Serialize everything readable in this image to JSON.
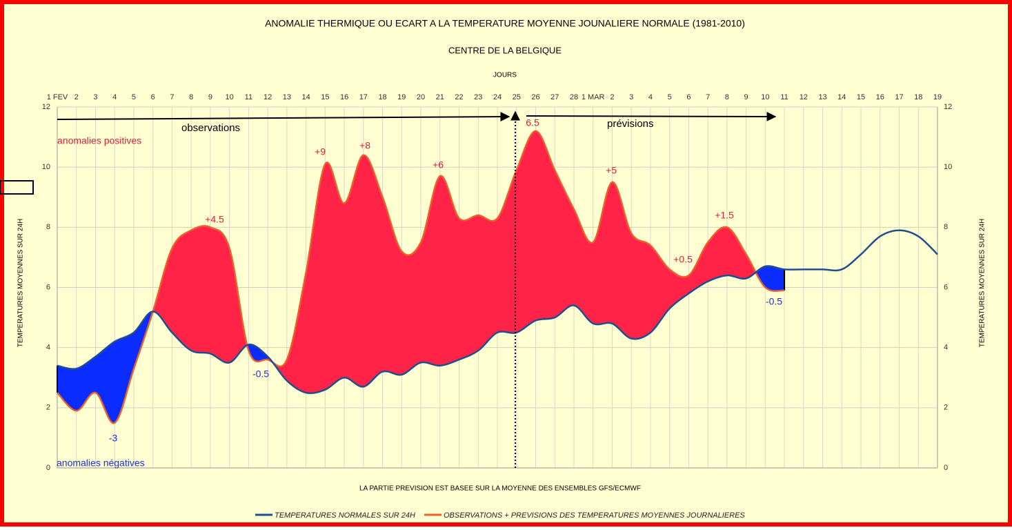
{
  "chart_data": {
    "type": "line",
    "title": "ANOMALIE THERMIQUE OU ECART A LA TEMPERATURE MOYENNE JOUNALIERE NORMALE (1981-2010)",
    "subtitle": "CENTRE DE LA BELGIQUE",
    "x_label": "JOURS",
    "y_label": "TEMPERATURES MOYENNES SUR 24H",
    "note": "LA PARTIE PREVISION EST BASEE SUR LA MOYENNE DES ENSEMBLES GFS/ECMWF",
    "categories": [
      "1 FEV",
      "2",
      "3",
      "4",
      "5",
      "6",
      "7",
      "8",
      "9",
      "10",
      "11",
      "12",
      "13",
      "14",
      "15",
      "16",
      "17",
      "18",
      "19",
      "20",
      "21",
      "22",
      "23",
      "24",
      "25",
      "26",
      "27",
      "28",
      "1 MAR",
      "2",
      "3",
      "4",
      "5",
      "6",
      "7",
      "8",
      "9",
      "10",
      "11",
      "12",
      "13",
      "14",
      "15",
      "16",
      "17",
      "18",
      "19"
    ],
    "series": [
      {
        "name": "TEMPERATURES NORMALES SUR 24H",
        "color": "#1f4e8c",
        "values": [
          3.4,
          3.3,
          3.7,
          4.2,
          4.5,
          5.2,
          4.5,
          3.9,
          3.8,
          3.5,
          4.1,
          3.7,
          2.9,
          2.5,
          2.6,
          3.0,
          2.7,
          3.2,
          3.1,
          3.5,
          3.4,
          3.6,
          3.9,
          4.5,
          4.5,
          4.9,
          5.0,
          5.4,
          4.8,
          4.8,
          4.3,
          4.5,
          5.3,
          5.8,
          6.2,
          6.4,
          6.3,
          6.7,
          6.6,
          6.6,
          6.6,
          6.6,
          7.1,
          7.7,
          7.9,
          7.7,
          7.1
        ]
      },
      {
        "name": "OBSERVATIONS + PREVISIONS DES TEMPERATURES MOYENNES JOURNALIERES",
        "color": "#e8602c",
        "values": [
          2.5,
          1.9,
          2.5,
          1.5,
          3.3,
          5.2,
          7.3,
          7.9,
          8.0,
          7.3,
          3.9,
          3.6,
          3.6,
          6.5,
          10.1,
          8.8,
          10.4,
          9.0,
          7.2,
          7.5,
          9.7,
          8.3,
          8.4,
          8.3,
          9.9,
          11.2,
          9.9,
          8.6,
          7.5,
          9.5,
          7.8,
          7.4,
          6.6,
          6.4,
          7.5,
          8.0,
          7.1,
          6.0,
          5.9,
          null,
          null,
          null,
          null,
          null,
          null,
          null,
          null
        ]
      }
    ],
    "positive_color": "#ff2447",
    "negative_color": "#0a2cff",
    "ylim": [
      0,
      12
    ],
    "yticks": [
      0,
      2,
      4,
      6,
      8,
      10,
      12
    ],
    "grid": true,
    "annotations": [
      "observations",
      "prévisions",
      "anomalies positives",
      "anomalies négatives",
      "+4.5",
      "+9",
      "+8",
      "+6",
      "6.5",
      "+5",
      "+0.5",
      "+1.5",
      "-3",
      "-0.5",
      "-0.5"
    ]
  }
}
